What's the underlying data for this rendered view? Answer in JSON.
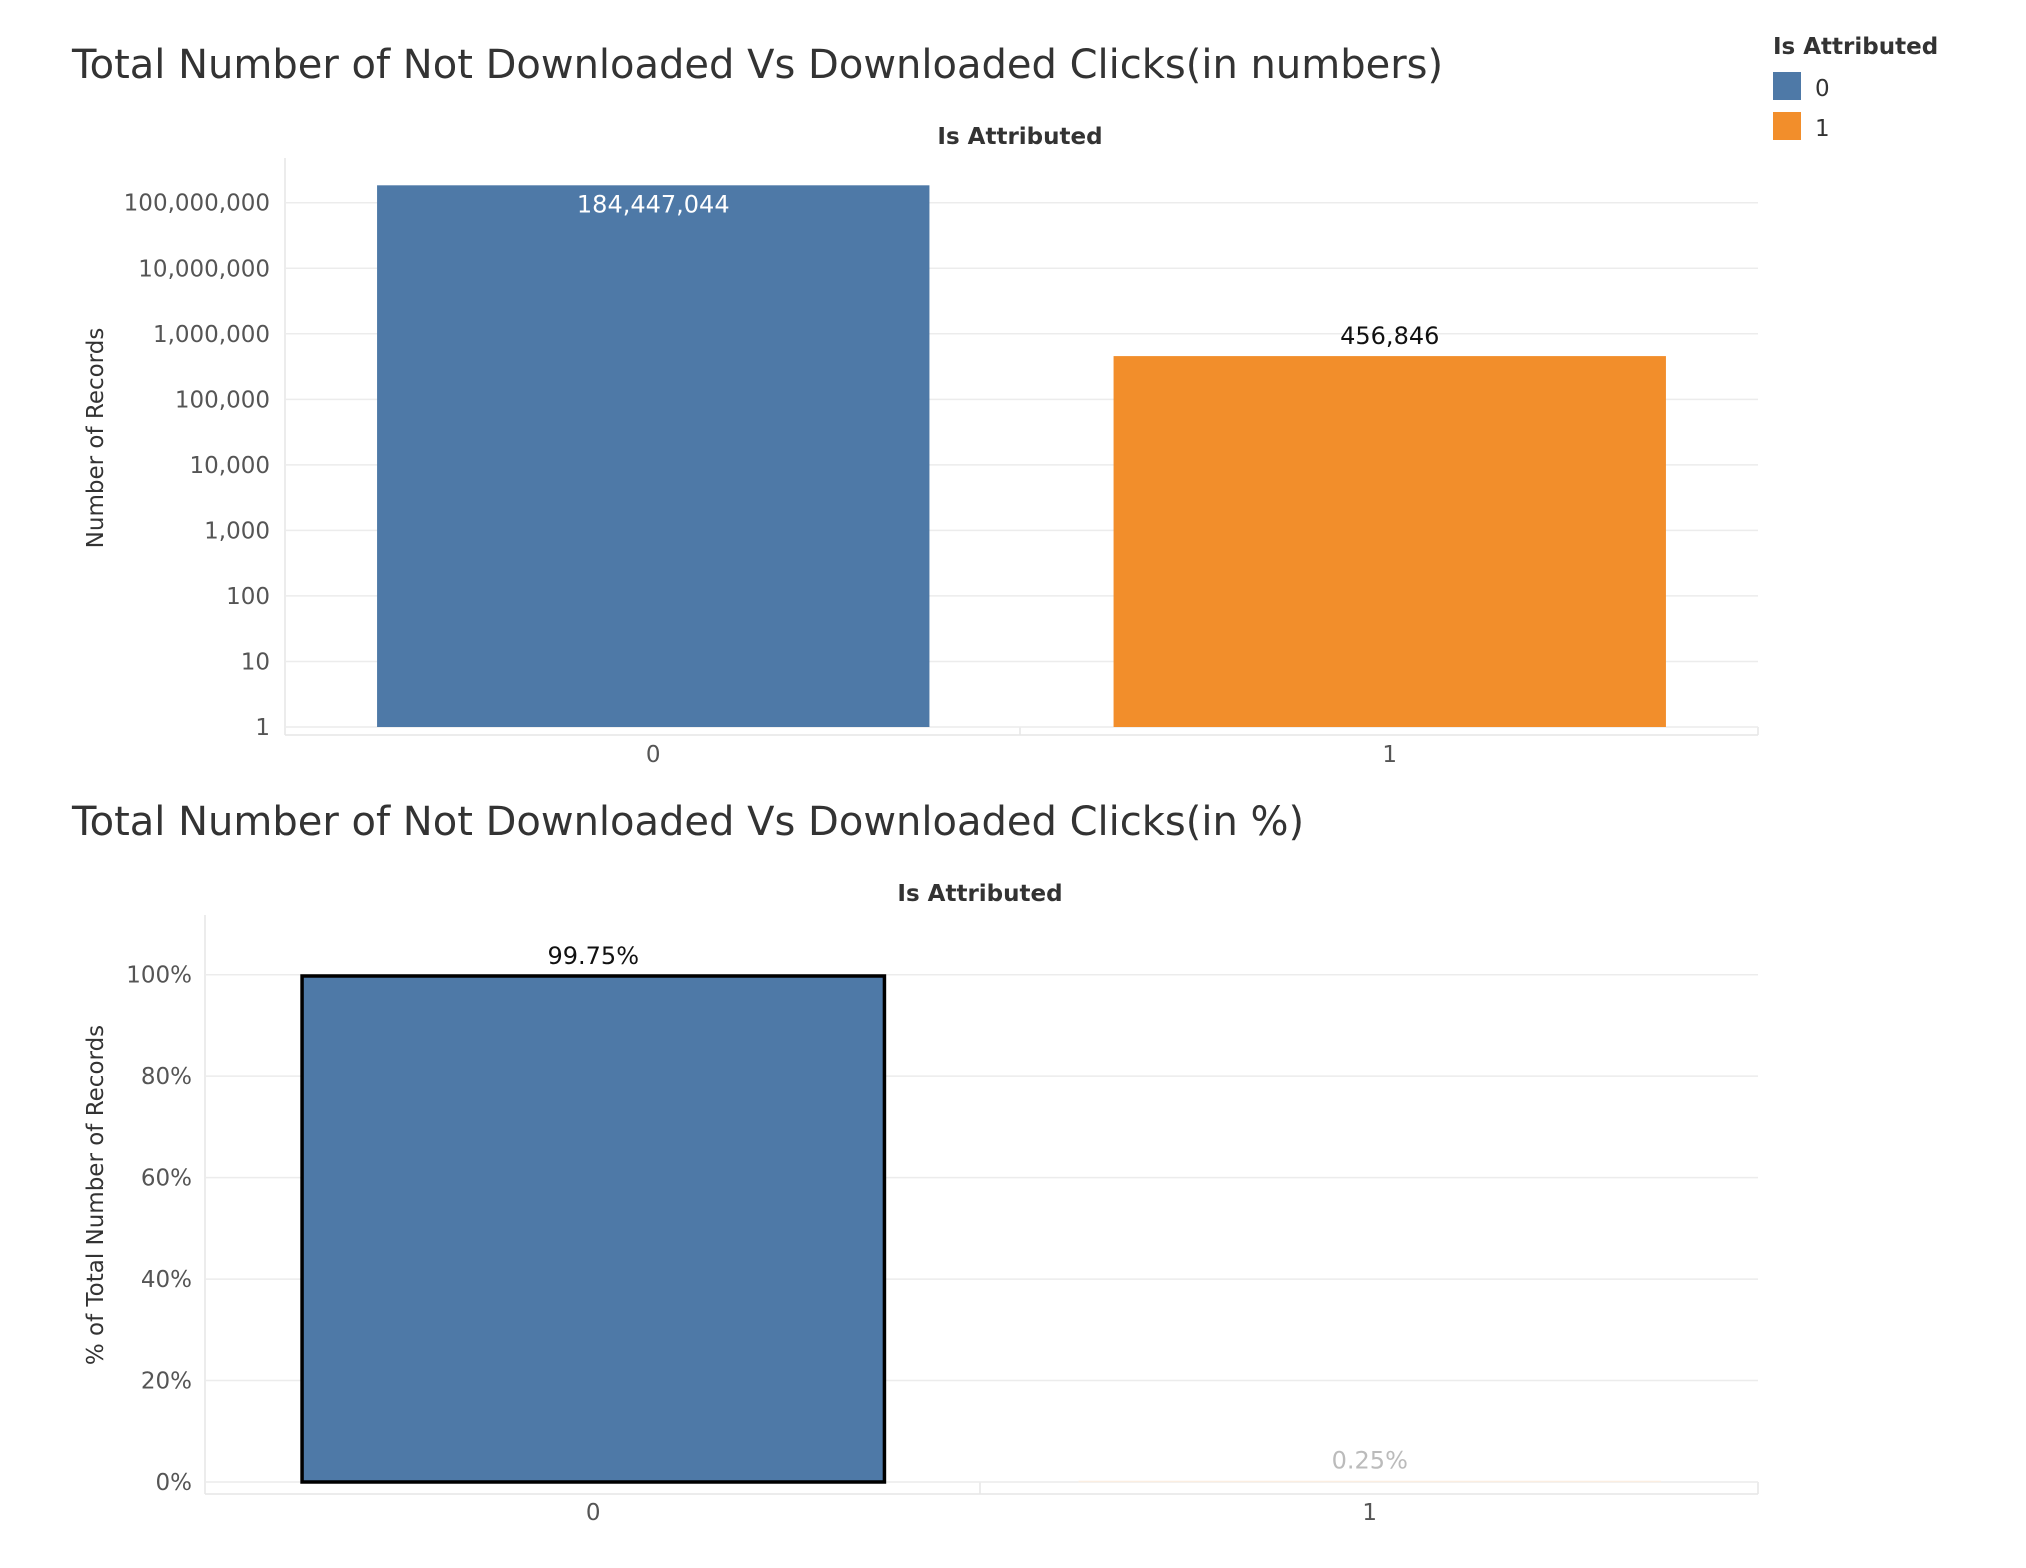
{
  "legend": {
    "title": "Is Attributed",
    "items": [
      {
        "label": "0",
        "color": "#4e79a7"
      },
      {
        "label": "1",
        "color": "#f28e2b"
      }
    ]
  },
  "chart_data": [
    {
      "type": "bar",
      "title": "Total Number of Not Downloaded Vs Downloaded Clicks(in numbers)",
      "header": "Is Attributed",
      "xlabel": "",
      "ylabel": "Number of Records",
      "yscale": "log",
      "ylim": [
        1,
        200000000
      ],
      "yticks": [
        "1",
        "10",
        "100",
        "1,000",
        "10,000",
        "100,000",
        "1,000,000",
        "10,000,000",
        "100,000,000"
      ],
      "categories": [
        "0",
        "1"
      ],
      "values": [
        184447044,
        456846
      ],
      "data_labels": [
        "184,447,044",
        "456,846"
      ],
      "colors": [
        "#4e79a7",
        "#f28e2b"
      ],
      "grid": true
    },
    {
      "type": "bar",
      "title": "Total Number of Not Downloaded Vs Downloaded Clicks(in %)",
      "header": "Is Attributed",
      "xlabel": "",
      "ylabel": "% of Total Number of Records",
      "yscale": "linear",
      "ylim": [
        0,
        110
      ],
      "yticks": [
        "0%",
        "20%",
        "40%",
        "60%",
        "80%",
        "100%"
      ],
      "categories": [
        "0",
        "1"
      ],
      "values": [
        99.75,
        0.25
      ],
      "data_labels": [
        "99.75%",
        "0.25%"
      ],
      "colors": [
        "#4e79a7",
        "#f28e2b"
      ],
      "selected": "0",
      "grid": true
    }
  ]
}
